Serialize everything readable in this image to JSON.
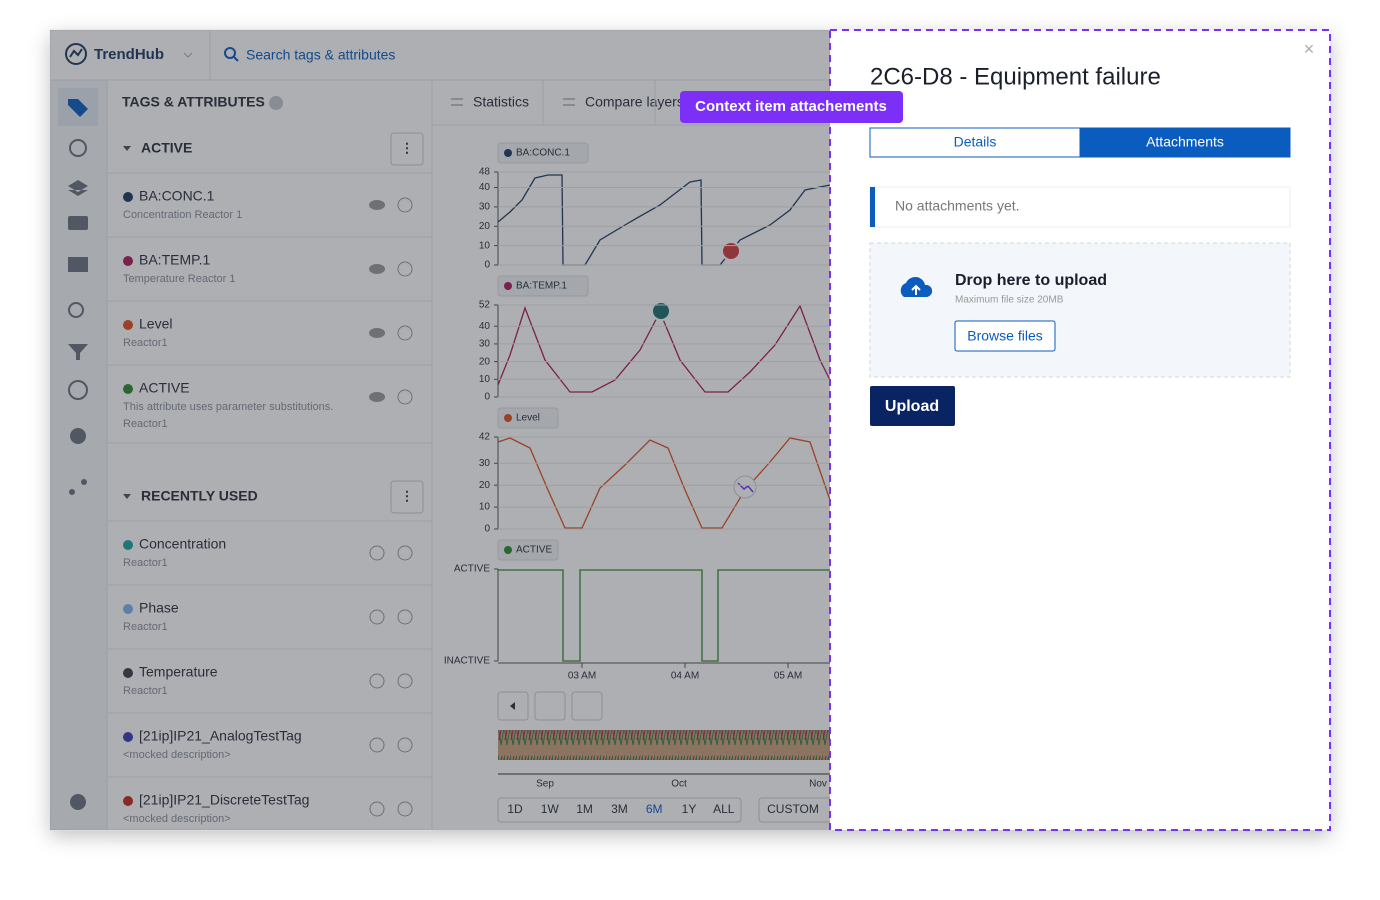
{
  "app": {
    "brand": "TrendHub",
    "search": "Search tags & attributes"
  },
  "sidebar": {
    "title": "TAGS & ATTRIBUTES",
    "active": {
      "title": "ACTIVE",
      "items": [
        {
          "name": "BA:CONC.1",
          "color": "#1f3a60",
          "desc": [
            "Concentration Reactor 1"
          ]
        },
        {
          "name": "BA:TEMP.1",
          "color": "#b0195a",
          "desc": [
            "Temperature Reactor 1"
          ]
        },
        {
          "name": "Level",
          "color": "#e0501e",
          "desc": [
            "Reactor1"
          ]
        },
        {
          "name": "ACTIVE",
          "color": "#2e8b2e",
          "desc": [
            "This attribute uses parameter substitutions.",
            "Reactor1"
          ]
        }
      ]
    },
    "recent": {
      "title": "RECENTLY USED",
      "items": [
        {
          "name": "Concentration",
          "color": "#1aa39a",
          "desc": [
            "Reactor1"
          ]
        },
        {
          "name": "Phase",
          "color": "#7fb3f0",
          "desc": [
            "Reactor1"
          ]
        },
        {
          "name": "Temperature",
          "color": "#3a3f4a",
          "desc": [
            "Reactor1"
          ]
        },
        {
          "name": "[21ip]IP21_AnalogTestTag",
          "color": "#3b3bb8",
          "desc": [
            "<mocked description>"
          ]
        },
        {
          "name": "[21ip]IP21_DiscreteTestTag",
          "color": "#c0281e",
          "desc": [
            "<mocked description>"
          ]
        }
      ]
    }
  },
  "toolbar": [
    "Statistics",
    "Compare layers"
  ],
  "tooltip": "Context item attachements",
  "charts": [
    {
      "label": "BA:CONC.1",
      "color": "#1f3a60",
      "ylim": [
        0,
        48
      ],
      "yticks": [
        0,
        10,
        20,
        30,
        40,
        48
      ]
    },
    {
      "label": "BA:TEMP.1",
      "color": "#b0195a",
      "ylim": [
        0,
        52
      ],
      "yticks": [
        0,
        10,
        20,
        30,
        40,
        52
      ]
    },
    {
      "label": "Level",
      "color": "#e0501e",
      "ylim": [
        0,
        42
      ],
      "yticks": [
        0,
        10,
        20,
        30,
        42
      ]
    },
    {
      "label": "ACTIVE",
      "color": "#2e8b2e",
      "states": [
        "ACTIVE",
        "INACTIVE"
      ]
    }
  ],
  "xticks": [
    "03 AM",
    "04 AM",
    "05 AM"
  ],
  "navigator_ticks": [
    "Sep",
    "Oct",
    "Nov"
  ],
  "ranges": [
    "1D",
    "1W",
    "1M",
    "3M",
    "6M",
    "1Y",
    "ALL"
  ],
  "selected_range": "6M",
  "custom": "CUSTOM",
  "panel": {
    "close": "×",
    "title": "2C6-D8 - Equipment failure",
    "tabs": [
      "Details",
      "Attachments"
    ],
    "active_tab": "Attachments",
    "empty": "No attachments yet.",
    "drop_title": "Drop here to upload",
    "drop_hint": "Maximum file size 20MB",
    "browse": "Browse files",
    "upload": "Upload"
  }
}
